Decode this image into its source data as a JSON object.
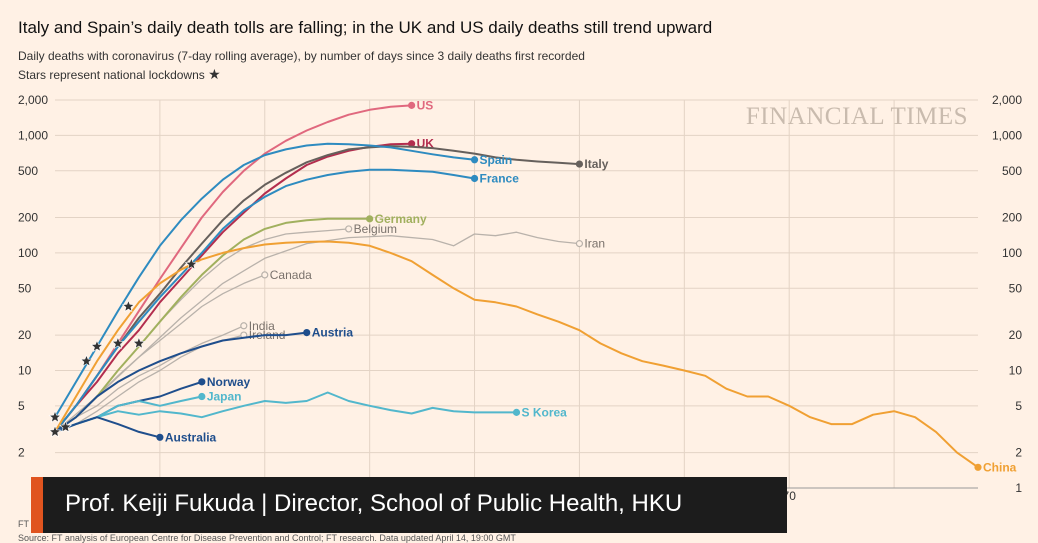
{
  "header": {
    "title": "Italy and Spain’s daily death tolls are falling; in the UK and US daily deaths still trend upward",
    "subtitle1": "Daily deaths with coronavirus (7-day rolling average), by number of days since 3 daily deaths first recorded",
    "subtitle2": "Stars represent national lockdowns",
    "star_glyph": "★"
  },
  "watermark": "FINANCIAL TIMES",
  "lower_third": {
    "text": "Prof. Keiji Fukuda | Director, School of Public Health, HKU",
    "accent_color": "#e0541f"
  },
  "footer": {
    "ft_note": "FT",
    "source": "Source: FT analysis of European Centre for Disease Prevention and Control; FT research. Data updated April 14, 19:00 GMT"
  },
  "chart_data": {
    "type": "line",
    "yscale": "log",
    "xlim": [
      0,
      88
    ],
    "ylim": [
      1,
      2000
    ],
    "y_ticks": [
      {
        "value": 2000,
        "label": "2,000"
      },
      {
        "value": 1000,
        "label": "1,000"
      },
      {
        "value": 500,
        "label": "500"
      },
      {
        "value": 200,
        "label": "200"
      },
      {
        "value": 100,
        "label": "100"
      },
      {
        "value": 50,
        "label": "50"
      },
      {
        "value": 20,
        "label": "20"
      },
      {
        "value": 10,
        "label": "10"
      },
      {
        "value": 5,
        "label": "5"
      },
      {
        "value": 2,
        "label": "2"
      },
      {
        "value": 1,
        "label": "1"
      }
    ],
    "x_ticks": [
      {
        "value": 70,
        "label": "70"
      }
    ],
    "grid": true,
    "colors": {
      "grid": "#e3d3c5",
      "gray": "#b9b2ab",
      "text": "#333333"
    },
    "series": [
      {
        "name": "US",
        "color": "#e0687e",
        "highlight": true,
        "x": [
          0,
          2,
          4,
          6,
          8,
          10,
          12,
          14,
          16,
          18,
          20,
          22,
          24,
          26,
          28,
          30,
          32,
          34
        ],
        "y": [
          3,
          5,
          9,
          17,
          32,
          60,
          110,
          200,
          330,
          500,
          700,
          900,
          1100,
          1300,
          1500,
          1650,
          1750,
          1800
        ]
      },
      {
        "name": "UK",
        "color": "#b32d4e",
        "highlight": true,
        "x": [
          0,
          2,
          4,
          6,
          8,
          10,
          12,
          14,
          16,
          18,
          20,
          22,
          24,
          26,
          28,
          30,
          32,
          34
        ],
        "y": [
          3,
          5,
          8,
          14,
          22,
          38,
          60,
          95,
          150,
          220,
          320,
          430,
          560,
          660,
          740,
          800,
          840,
          850
        ]
      },
      {
        "name": "Italy",
        "color": "#66605c",
        "highlight": true,
        "x": [
          0,
          2,
          4,
          6,
          8,
          10,
          12,
          14,
          16,
          18,
          20,
          22,
          24,
          26,
          28,
          30,
          32,
          34,
          36,
          38,
          40,
          42,
          44,
          46,
          48,
          50
        ],
        "y": [
          3,
          5,
          9,
          16,
          28,
          45,
          75,
          120,
          190,
          280,
          380,
          480,
          590,
          680,
          760,
          790,
          810,
          800,
          780,
          740,
          700,
          650,
          620,
          600,
          585,
          570
        ]
      },
      {
        "name": "Spain",
        "color": "#2e8bc0",
        "highlight": true,
        "x": [
          0,
          2,
          4,
          6,
          8,
          10,
          12,
          14,
          16,
          18,
          20,
          22,
          24,
          26,
          28,
          30,
          32,
          34,
          36,
          38,
          40
        ],
        "y": [
          4,
          8,
          16,
          32,
          62,
          115,
          190,
          290,
          420,
          560,
          680,
          760,
          820,
          850,
          840,
          820,
          790,
          740,
          690,
          650,
          620
        ]
      },
      {
        "name": "France",
        "color": "#2e8bc0",
        "highlight": true,
        "x": [
          0,
          2,
          4,
          6,
          8,
          10,
          12,
          14,
          16,
          18,
          20,
          22,
          24,
          26,
          28,
          30,
          32,
          34,
          36,
          38,
          40
        ],
        "y": [
          3,
          5,
          9,
          16,
          26,
          42,
          65,
          100,
          160,
          230,
          300,
          370,
          420,
          460,
          490,
          510,
          510,
          500,
          490,
          460,
          430
        ]
      },
      {
        "name": "Germany",
        "color": "#a1b05e",
        "highlight": true,
        "x": [
          0,
          2,
          4,
          6,
          8,
          10,
          12,
          14,
          16,
          18,
          20,
          22,
          24,
          26,
          28,
          30
        ],
        "y": [
          3,
          4,
          6,
          10,
          16,
          26,
          42,
          65,
          95,
          130,
          160,
          180,
          190,
          195,
          195,
          195
        ]
      },
      {
        "name": "Belgium",
        "color": "#b9b2ab",
        "highlight": false,
        "x": [
          0,
          2,
          4,
          6,
          8,
          10,
          12,
          14,
          16,
          18,
          20,
          22,
          24,
          26,
          28
        ],
        "y": [
          3,
          4,
          6,
          10,
          16,
          26,
          40,
          60,
          85,
          110,
          130,
          145,
          150,
          155,
          160
        ]
      },
      {
        "name": "Iran",
        "color": "#b9b2ab",
        "highlight": false,
        "x": [
          0,
          4,
          8,
          12,
          16,
          20,
          24,
          28,
          32,
          36,
          38,
          40,
          42,
          44,
          46,
          48,
          50
        ],
        "y": [
          3,
          6,
          13,
          28,
          55,
          90,
          120,
          135,
          140,
          130,
          115,
          145,
          140,
          150,
          135,
          125,
          120
        ]
      },
      {
        "name": "China",
        "color": "#f0a033",
        "highlight": true,
        "x": [
          0,
          2,
          4,
          6,
          8,
          10,
          12,
          14,
          16,
          18,
          20,
          22,
          24,
          26,
          28,
          30,
          32,
          34,
          36,
          38,
          40,
          42,
          44,
          46,
          48,
          50,
          52,
          54,
          56,
          58,
          60,
          62,
          64,
          66,
          68,
          70,
          72,
          74,
          76,
          78,
          80,
          82,
          84,
          86,
          88
        ],
        "y": [
          3,
          6,
          12,
          22,
          38,
          55,
          72,
          88,
          100,
          110,
          118,
          122,
          124,
          125,
          122,
          115,
          100,
          85,
          65,
          50,
          40,
          38,
          35,
          30,
          26,
          22,
          17,
          14,
          12,
          11,
          10,
          9,
          7,
          6,
          6,
          5,
          4,
          3.5,
          3.5,
          4.2,
          4.5,
          4,
          3,
          2,
          1.5
        ]
      },
      {
        "name": "Canada",
        "color": "#b9b2ab",
        "highlight": false,
        "x": [
          0,
          2,
          4,
          6,
          8,
          10,
          12,
          14,
          16,
          18,
          20
        ],
        "y": [
          3,
          4,
          6,
          9,
          13,
          18,
          25,
          35,
          45,
          55,
          65
        ]
      },
      {
        "name": "India",
        "color": "#b9b2ab",
        "highlight": false,
        "x": [
          0,
          2,
          4,
          6,
          8,
          10,
          12,
          14,
          16,
          18
        ],
        "y": [
          3,
          4,
          5,
          7,
          9,
          11,
          14,
          17,
          20,
          24
        ]
      },
      {
        "name": "Ireland",
        "color": "#b9b2ab",
        "highlight": false,
        "x": [
          0,
          2,
          4,
          6,
          8,
          10,
          12,
          14,
          16,
          18
        ],
        "y": [
          3,
          3.5,
          4.5,
          6,
          8,
          10,
          13,
          16,
          18,
          20
        ]
      },
      {
        "name": "Austria",
        "color": "#1f4e8c",
        "highlight": true,
        "x": [
          0,
          2,
          4,
          6,
          8,
          10,
          12,
          14,
          16,
          18,
          20,
          22,
          24
        ],
        "y": [
          3,
          4,
          6,
          8,
          10,
          12,
          14,
          16,
          18,
          19,
          20,
          20,
          21
        ]
      },
      {
        "name": "Norway",
        "color": "#1f4e8c",
        "highlight": true,
        "x": [
          0,
          2,
          4,
          6,
          8,
          10,
          12,
          14
        ],
        "y": [
          3,
          3.5,
          4,
          5,
          5.5,
          6,
          7,
          8
        ]
      },
      {
        "name": "Japan",
        "color": "#52b7cc",
        "highlight": true,
        "x": [
          0,
          2,
          4,
          6,
          8,
          10,
          12,
          14
        ],
        "y": [
          3,
          3.5,
          4,
          5,
          5.5,
          5,
          5.5,
          6
        ]
      },
      {
        "name": "S Korea",
        "color": "#52b7cc",
        "highlight": true,
        "x": [
          0,
          2,
          4,
          6,
          8,
          10,
          12,
          14,
          16,
          18,
          20,
          22,
          24,
          26,
          28,
          30,
          32,
          34,
          36,
          38,
          40,
          42,
          44
        ],
        "y": [
          3,
          3.5,
          4,
          4.5,
          4.2,
          4.5,
          4.3,
          4,
          4.5,
          5,
          5.5,
          5.3,
          5.5,
          6.5,
          5.5,
          5,
          4.6,
          4.3,
          4.8,
          4.5,
          4.4,
          4.4,
          4.4
        ]
      },
      {
        "name": "Australia",
        "color": "#1f4e8c",
        "highlight": true,
        "x": [
          0,
          2,
          4,
          6,
          8,
          10
        ],
        "y": [
          3,
          3.5,
          4,
          3.5,
          3,
          2.7
        ]
      }
    ],
    "lockdowns": [
      {
        "series": "Italy",
        "x": 6,
        "y": 17
      },
      {
        "series": "Spain",
        "x": 4,
        "y": 16
      },
      {
        "series": "France",
        "x": 7,
        "y": 35
      },
      {
        "series": "UK",
        "x": 13,
        "y": 80
      },
      {
        "series": "US",
        "x": 1,
        "y": 3.3
      },
      {
        "series": "India",
        "x": 8,
        "y": 17
      },
      {
        "series": "Germany",
        "x": 3,
        "y": 12
      },
      {
        "series": "Japan",
        "x": 0,
        "y": 3
      },
      {
        "series": "Austria",
        "x": 0,
        "y": 4
      }
    ]
  }
}
